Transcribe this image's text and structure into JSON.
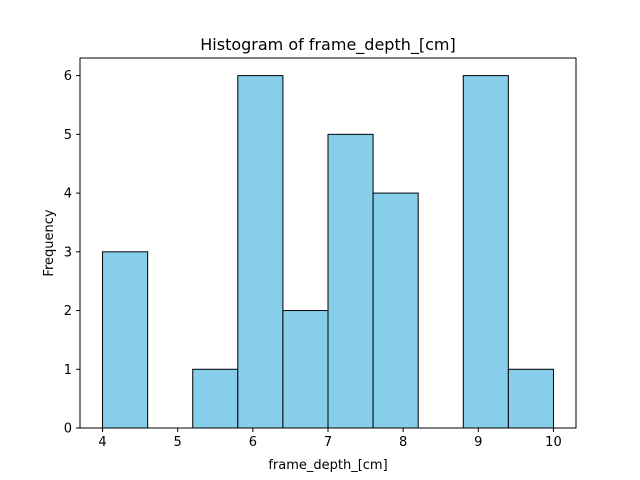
{
  "chart_data": {
    "type": "bar",
    "title": "Histogram of frame_depth_[cm]",
    "xlabel": "frame_depth_[cm]",
    "ylabel": "Frequency",
    "bin_edges": [
      4.0,
      4.6,
      5.2,
      5.8,
      6.4,
      7.0,
      7.6,
      8.2,
      8.8,
      9.4,
      10.0
    ],
    "values": [
      3,
      0,
      1,
      6,
      2,
      5,
      4,
      0,
      6,
      1
    ],
    "xlim": [
      3.7,
      10.3
    ],
    "ylim": [
      0,
      6.3
    ],
    "xticks": [
      "4",
      "5",
      "6",
      "7",
      "8",
      "9",
      "10"
    ],
    "xtick_values": [
      4,
      5,
      6,
      7,
      8,
      9,
      10
    ],
    "yticks": [
      "0",
      "1",
      "2",
      "3",
      "4",
      "5",
      "6"
    ],
    "ytick_values": [
      0,
      1,
      2,
      3,
      4,
      5,
      6
    ],
    "bar_color": "#87CEEB",
    "edge_color": "#000000",
    "grid": false,
    "legend": "none"
  }
}
